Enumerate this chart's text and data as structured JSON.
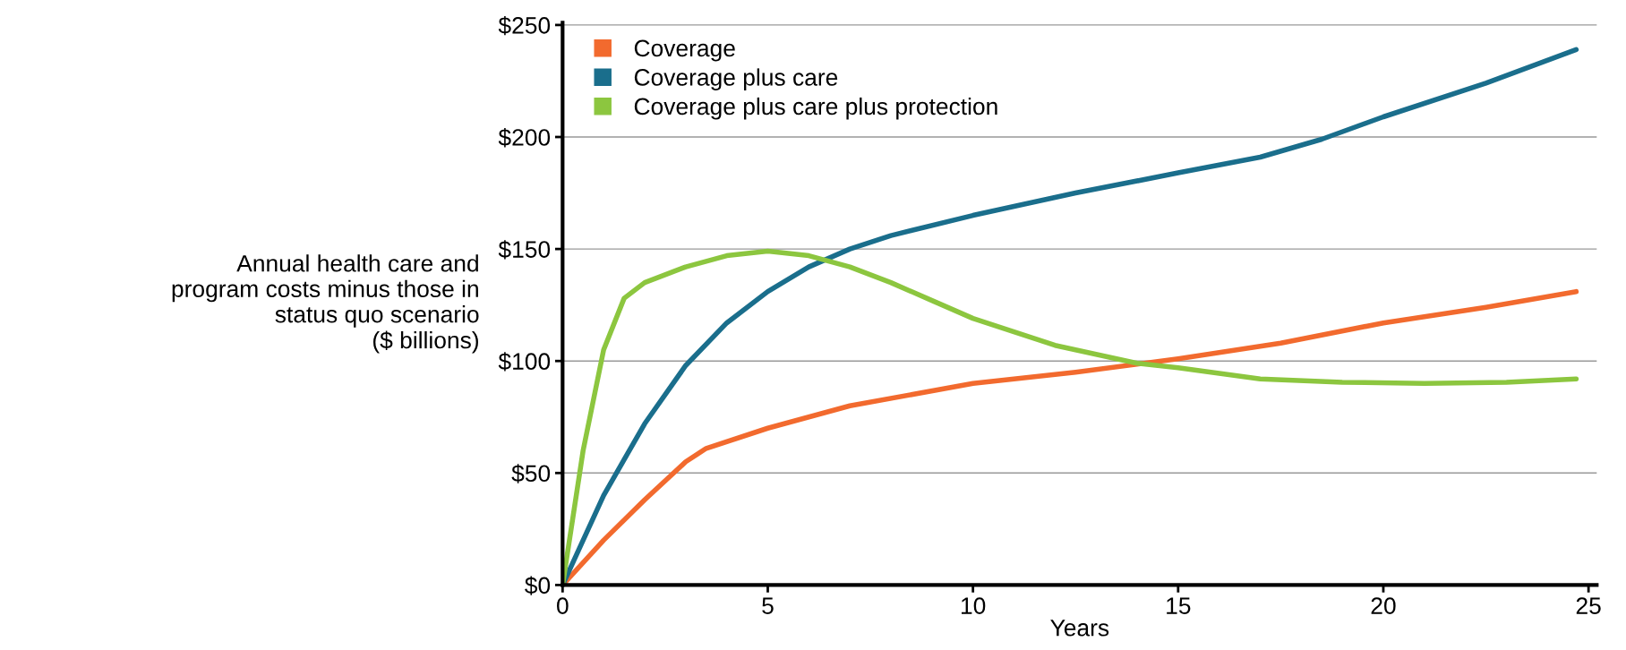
{
  "chart_data": {
    "type": "line",
    "xlabel": "Years",
    "ylabel": "Annual health care and\nprogram costs minus those in\nstatus quo scenario\n($ billions)",
    "xlim": [
      0,
      25.2
    ],
    "xticks": [
      0,
      5,
      10,
      15,
      20,
      25
    ],
    "ylim": [
      0,
      251
    ],
    "yticks": [
      {
        "value": 0,
        "label": "$0"
      },
      {
        "value": 50,
        "label": "$50"
      },
      {
        "value": 100,
        "label": "$100"
      },
      {
        "value": 150,
        "label": "$150"
      },
      {
        "value": 200,
        "label": "$200"
      },
      {
        "value": 250,
        "label": "$250"
      }
    ],
    "grid": "y",
    "legend": "top left",
    "marker": "none",
    "line_style": "solid",
    "series": [
      {
        "name": "Coverage",
        "color": "#f26a2e",
        "x": [
          0,
          1,
          2,
          3,
          3.5,
          5,
          7,
          10,
          12.5,
          15,
          17.5,
          20,
          22.5,
          24.7
        ],
        "values": [
          0,
          20,
          38,
          55,
          61,
          70,
          80,
          90,
          95,
          101,
          108,
          117,
          124,
          131
        ]
      },
      {
        "name": "Coverage plus care",
        "color": "#1a6e8c",
        "x": [
          0,
          1,
          2,
          3,
          4,
          5,
          6,
          7,
          8,
          10,
          12.5,
          15,
          17,
          18.5,
          20,
          22.5,
          24.7
        ],
        "values": [
          0,
          40,
          72,
          98,
          117,
          131,
          142,
          150,
          156,
          165,
          175,
          184,
          191,
          199,
          209,
          224,
          239
        ]
      },
      {
        "name": "Coverage plus care plus protection",
        "color": "#8cc63f",
        "x": [
          0,
          0.5,
          1,
          1.5,
          2,
          3,
          4,
          5,
          6,
          7,
          8,
          9,
          10,
          12,
          14,
          15,
          17,
          19,
          21,
          23,
          24.7
        ],
        "values": [
          0,
          60,
          105,
          128,
          135,
          142,
          147,
          149,
          147,
          142,
          135,
          127,
          119,
          107,
          99,
          97,
          92,
          90.5,
          90,
          90.5,
          92
        ]
      }
    ]
  }
}
